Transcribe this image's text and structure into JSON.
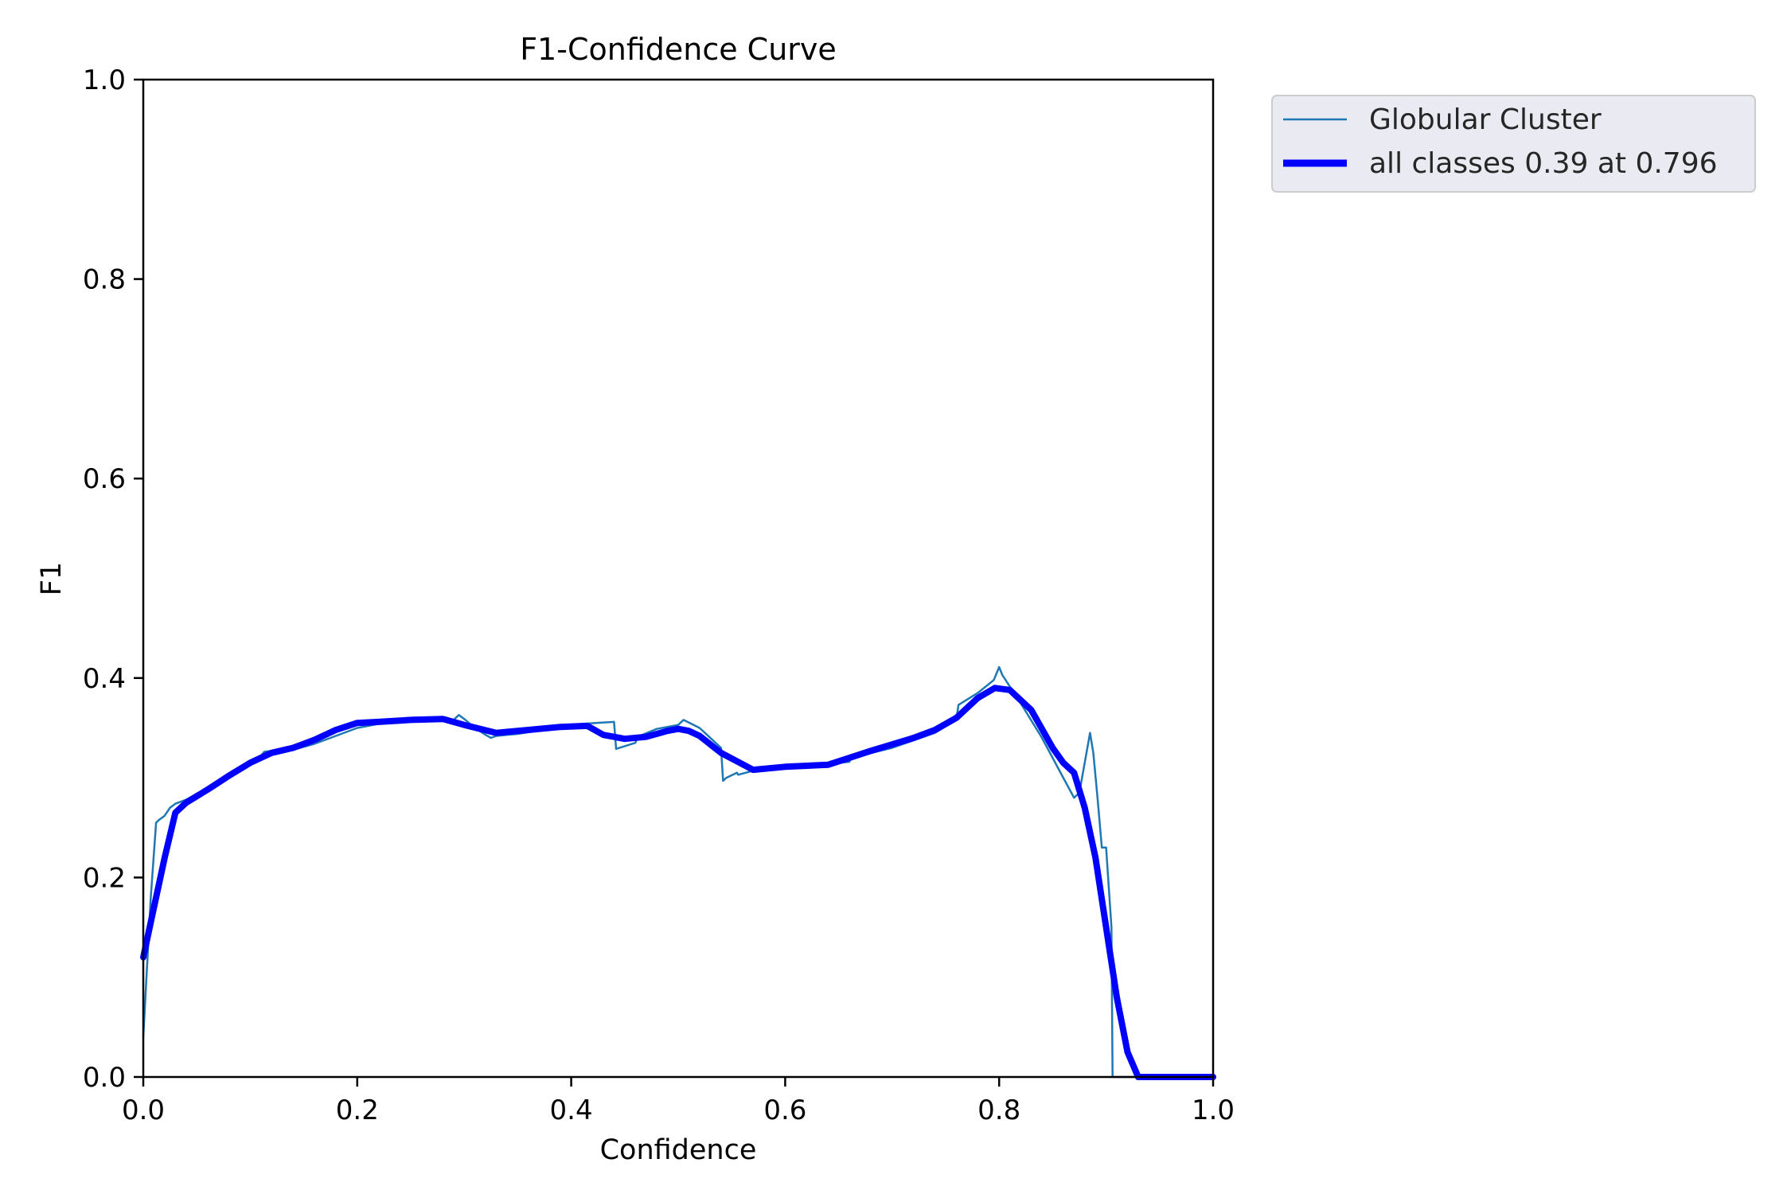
{
  "chart_data": {
    "type": "line",
    "title": "F1-Confidence Curve",
    "xlabel": "Confidence",
    "ylabel": "F1",
    "xlim": [
      0.0,
      1.0
    ],
    "ylim": [
      0.0,
      1.0
    ],
    "xticks": [
      "0.0",
      "0.2",
      "0.4",
      "0.6",
      "0.8",
      "1.0"
    ],
    "yticks": [
      "0.0",
      "0.2",
      "0.4",
      "0.6",
      "0.8",
      "1.0"
    ],
    "grid": false,
    "legend_position": "outside-top-right",
    "series": [
      {
        "name": "Globular Cluster",
        "color": "#1f77b4",
        "x": [
          0.0,
          0.003,
          0.007,
          0.012,
          0.015,
          0.02,
          0.025,
          0.03,
          0.04,
          0.05,
          0.07,
          0.09,
          0.11,
          0.113,
          0.12,
          0.14,
          0.16,
          0.18,
          0.2,
          0.22,
          0.25,
          0.28,
          0.29,
          0.295,
          0.3,
          0.31,
          0.32,
          0.325,
          0.33,
          0.35,
          0.38,
          0.41,
          0.44,
          0.442,
          0.46,
          0.462,
          0.48,
          0.5,
          0.505,
          0.52,
          0.54,
          0.542,
          0.545,
          0.555,
          0.556,
          0.57,
          0.6,
          0.62,
          0.64,
          0.66,
          0.662,
          0.7,
          0.74,
          0.76,
          0.762,
          0.78,
          0.795,
          0.8,
          0.803,
          0.82,
          0.84,
          0.86,
          0.87,
          0.875,
          0.88,
          0.885,
          0.888,
          0.892,
          0.896,
          0.897,
          0.9,
          0.905,
          0.906,
          0.91,
          0.95,
          1.0
        ],
        "y": [
          0.04,
          0.1,
          0.18,
          0.255,
          0.258,
          0.262,
          0.27,
          0.274,
          0.278,
          0.284,
          0.295,
          0.31,
          0.322,
          0.326,
          0.327,
          0.328,
          0.334,
          0.342,
          0.35,
          0.354,
          0.357,
          0.359,
          0.358,
          0.363,
          0.359,
          0.35,
          0.343,
          0.34,
          0.342,
          0.344,
          0.349,
          0.354,
          0.356,
          0.329,
          0.335,
          0.341,
          0.349,
          0.353,
          0.358,
          0.35,
          0.33,
          0.297,
          0.3,
          0.305,
          0.303,
          0.307,
          0.311,
          0.313,
          0.314,
          0.316,
          0.32,
          0.33,
          0.345,
          0.358,
          0.373,
          0.385,
          0.398,
          0.411,
          0.403,
          0.375,
          0.34,
          0.3,
          0.28,
          0.285,
          0.315,
          0.345,
          0.325,
          0.28,
          0.23,
          0.23,
          0.23,
          0.15,
          0.0,
          0.0,
          0.0,
          0.0
        ]
      },
      {
        "name": "all classes 0.39 at 0.796",
        "color": "#0000ff",
        "x": [
          0.0,
          0.01,
          0.02,
          0.03,
          0.04,
          0.06,
          0.08,
          0.1,
          0.12,
          0.14,
          0.16,
          0.18,
          0.2,
          0.22,
          0.25,
          0.28,
          0.3,
          0.33,
          0.36,
          0.39,
          0.415,
          0.43,
          0.45,
          0.47,
          0.49,
          0.5,
          0.51,
          0.52,
          0.54,
          0.57,
          0.6,
          0.64,
          0.68,
          0.72,
          0.74,
          0.76,
          0.78,
          0.796,
          0.81,
          0.83,
          0.85,
          0.86,
          0.87,
          0.88,
          0.89,
          0.9,
          0.91,
          0.92,
          0.93,
          0.96,
          1.0
        ],
        "y": [
          0.12,
          0.17,
          0.22,
          0.265,
          0.275,
          0.288,
          0.302,
          0.315,
          0.325,
          0.33,
          0.338,
          0.348,
          0.355,
          0.356,
          0.358,
          0.359,
          0.353,
          0.345,
          0.348,
          0.351,
          0.352,
          0.343,
          0.339,
          0.341,
          0.347,
          0.349,
          0.347,
          0.342,
          0.325,
          0.308,
          0.311,
          0.313,
          0.327,
          0.34,
          0.348,
          0.36,
          0.38,
          0.39,
          0.388,
          0.368,
          0.33,
          0.315,
          0.305,
          0.27,
          0.22,
          0.15,
          0.08,
          0.025,
          0.0,
          0.0,
          0.0
        ]
      }
    ]
  }
}
